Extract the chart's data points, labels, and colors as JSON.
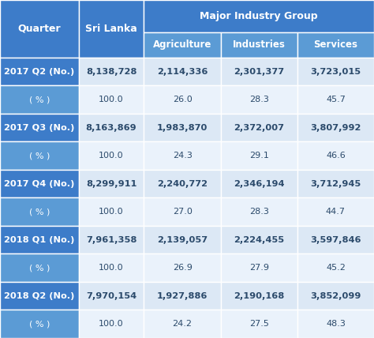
{
  "header1_label": "Major Industry Group",
  "col0_headers": [
    "Quarter",
    "Sri Lanka"
  ],
  "subheaders": [
    "Agriculture",
    "Industries",
    "Services"
  ],
  "rows": [
    [
      "2017 Q2 (No.)",
      "8,138,728",
      "2,114,336",
      "2,301,377",
      "3,723,015"
    ],
    [
      "( % )",
      "100.0",
      "26.0",
      "28.3",
      "45.7"
    ],
    [
      "2017 Q3 (No.)",
      "8,163,869",
      "1,983,870",
      "2,372,007",
      "3,807,992"
    ],
    [
      "( % )",
      "100.0",
      "24.3",
      "29.1",
      "46.6"
    ],
    [
      "2017 Q4 (No.)",
      "8,299,911",
      "2,240,772",
      "2,346,194",
      "3,712,945"
    ],
    [
      "( % )",
      "100.0",
      "27.0",
      "28.3",
      "44.7"
    ],
    [
      "2018 Q1 (No.)",
      "7,961,358",
      "2,139,057",
      "2,224,455",
      "3,597,846"
    ],
    [
      "( % )",
      "100.0",
      "26.9",
      "27.9",
      "45.2"
    ],
    [
      "2018 Q2 (No.)",
      "7,970,154",
      "1,927,886",
      "2,190,168",
      "3,852,099"
    ],
    [
      "( % )",
      "100.0",
      "24.2",
      "27.5",
      "48.3"
    ]
  ],
  "color_header_dark": "#3d7cc9",
  "color_header_sub": "#5b9bd5",
  "color_row_no_left": "#3d7cc9",
  "color_row_no_right": "#dce8f5",
  "color_row_pct_left": "#5b9bd5",
  "color_row_pct_right": "#eaf2fb",
  "color_text_white": "#ffffff",
  "color_text_dark": "#2b4a6b",
  "figsize": [
    4.74,
    4.28
  ],
  "dpi": 100
}
